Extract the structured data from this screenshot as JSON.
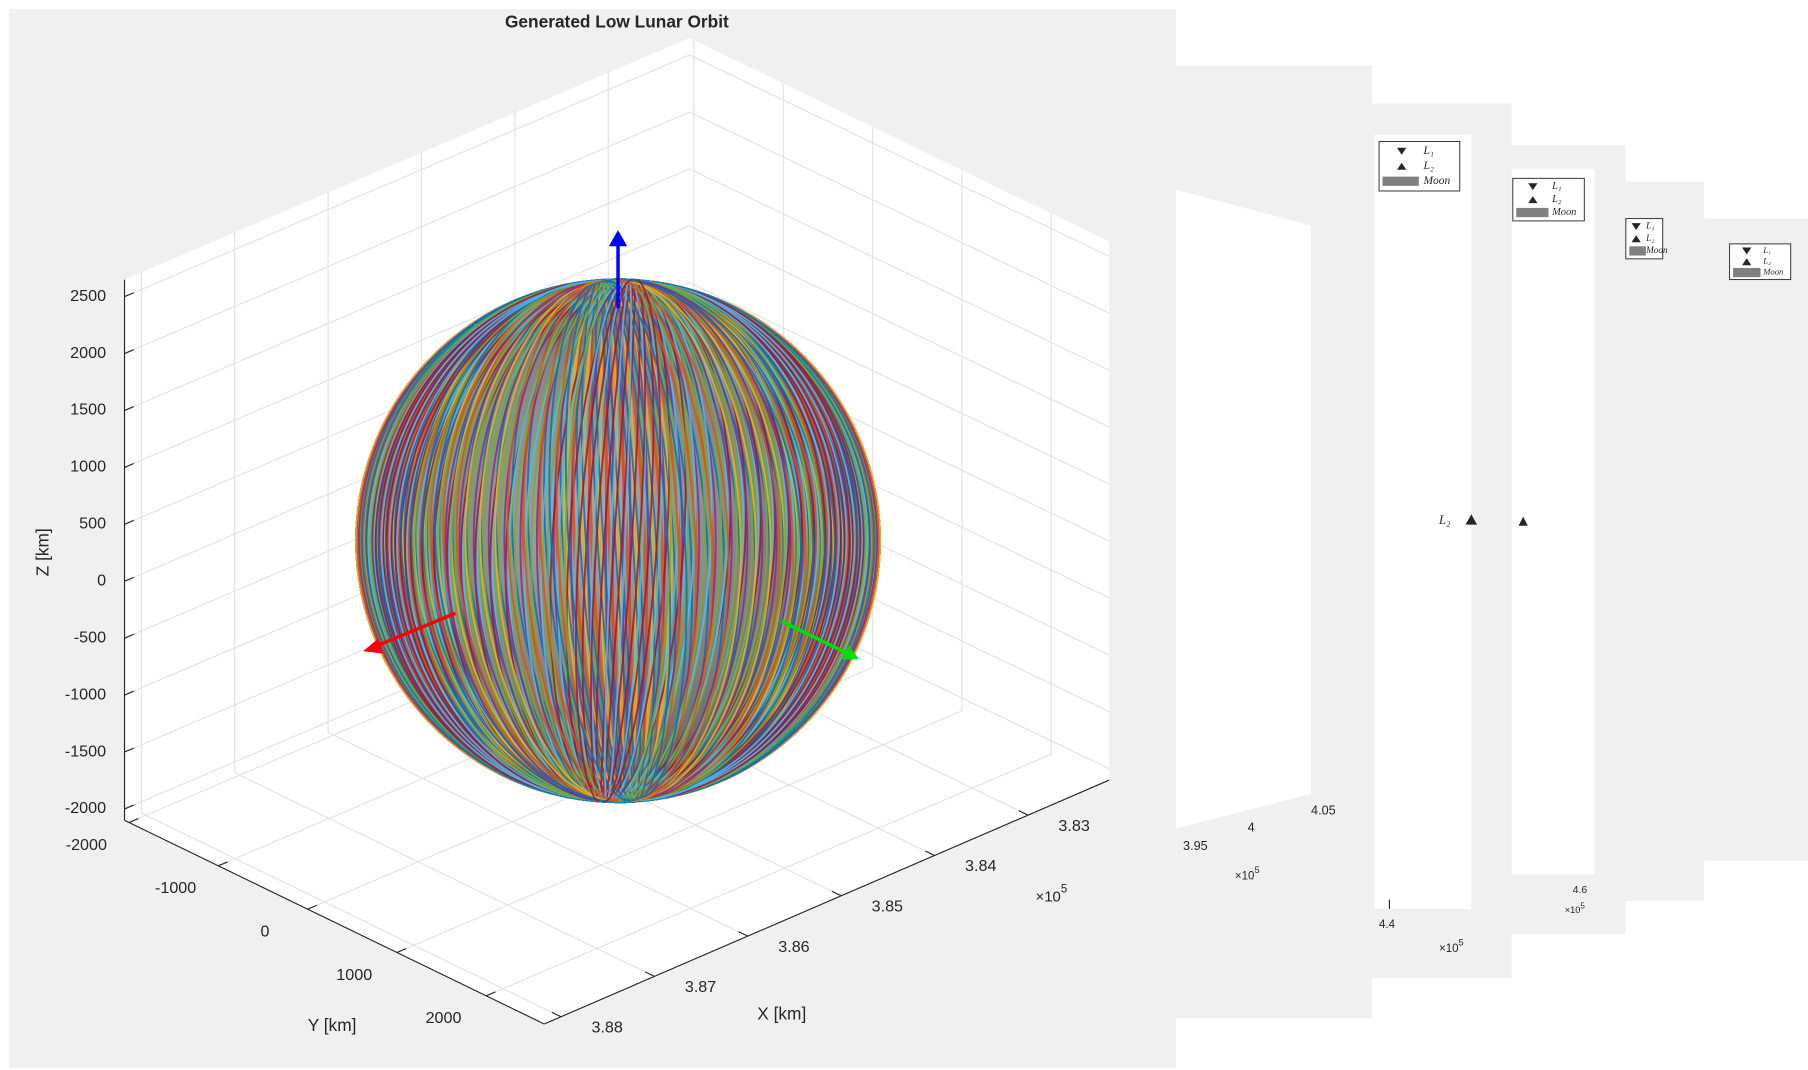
{
  "main_figure": {
    "title": "Generated Low Lunar Orbit",
    "xlabel": "X [km]",
    "ylabel": "Y [km]",
    "zlabel": "Z [km]",
    "x_exponent": {
      "base": "×10",
      "power": "5"
    },
    "xlim": [
      3.8818,
      3.8213
    ],
    "xticks": [
      3.88,
      3.87,
      3.86,
      3.85,
      3.84,
      3.83
    ],
    "ylim": [
      -2050,
      2650
    ],
    "yticks": [
      -2000,
      -1000,
      0,
      1000,
      2000
    ],
    "zlim": [
      -2100,
      2650
    ],
    "zticks": [
      -2000,
      -1500,
      -1000,
      -500,
      0,
      500,
      1000,
      1500,
      2000,
      2500
    ]
  },
  "back_windows": [
    {
      "ticks": [
        "3.95",
        "4",
        "4.05"
      ],
      "exponent": {
        "base": "×10",
        "power": "5"
      }
    },
    {
      "ticks": [
        "4.4"
      ],
      "exponent": {
        "base": "×10",
        "power": "5"
      },
      "point_label": "L₂",
      "legend": [
        "L₁",
        "L₂",
        "Moon"
      ]
    },
    {
      "ticks": [
        "4.6"
      ],
      "exponent": {
        "base": "×10",
        "power": "5"
      },
      "legend": [
        "L₁",
        "L₂",
        "Moon"
      ]
    },
    {
      "legend": [
        "L₁",
        "L₂",
        "Moon"
      ]
    },
    {
      "legend": [
        "L₁",
        "L₂",
        "Moon"
      ]
    }
  ]
}
